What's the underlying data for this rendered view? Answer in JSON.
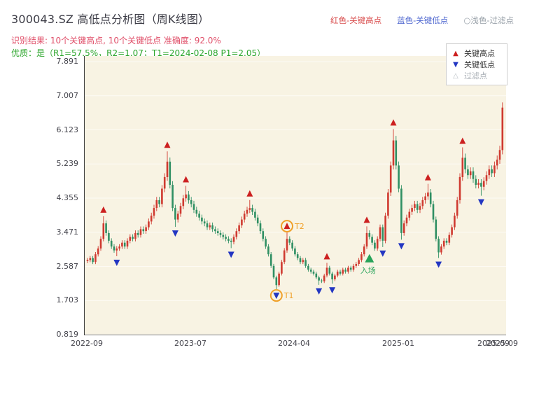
{
  "header": {
    "title": "300043.SZ 高低点分析图（周K线图）",
    "legend_right": [
      {
        "label": "红色-关键高点",
        "color": "#d94f4f"
      },
      {
        "label": "蓝色-关键低点",
        "color": "#5068d0"
      },
      {
        "label": "○浅色-过滤点",
        "color": "#98a0a8"
      }
    ],
    "result_line": "识别结果: 10个关键高点, 10个关键低点  准确度: 92.0%",
    "result_color": "#e0506a",
    "quality_line": "优质：是（R1=57.5%，R2=1.07；T1=2024-02-08 P1=2.05）",
    "quality_color": "#2aa52a"
  },
  "legend_box": {
    "items": [
      {
        "glyph": "▲",
        "label": "关键高点",
        "color": "#cc2020",
        "text_color": "#333333"
      },
      {
        "glyph": "▼",
        "label": "关键低点",
        "color": "#2336c2",
        "text_color": "#333333"
      },
      {
        "glyph": "△",
        "label": "过滤点",
        "color": "#b9bec4",
        "text_color": "#aab0b6"
      }
    ]
  },
  "chart_data": {
    "type": "candlestick",
    "title": "300043.SZ 高低点分析图（周K线图）",
    "x_ticks": [
      "2022-09",
      "2023-07",
      "2024-04",
      "2025-01",
      "2025-09"
    ],
    "x_tick_weeks": [
      0,
      39,
      78,
      117,
      156
    ],
    "x_extra_tick": {
      "label": "2025-09",
      "week": 153
    },
    "y_ticks": [
      7.891,
      7.007,
      6.123,
      5.239,
      4.355,
      3.471,
      2.587,
      1.703,
      0.819
    ],
    "y_tick_labels": [
      "7.891",
      "7.007",
      "6.123",
      "5.239",
      "4.355",
      "3.471",
      "2.587",
      "1.703",
      "0.819"
    ],
    "y_range": [
      0.819,
      7.891
    ],
    "grid": true,
    "closes": [
      2.75,
      2.8,
      2.7,
      2.9,
      3.05,
      3.3,
      3.7,
      3.45,
      3.25,
      3.1,
      3.0,
      3.05,
      3.1,
      3.2,
      3.1,
      3.25,
      3.35,
      3.3,
      3.45,
      3.4,
      3.55,
      3.5,
      3.6,
      3.75,
      3.9,
      4.1,
      4.3,
      4.2,
      4.6,
      4.9,
      5.3,
      4.7,
      4.1,
      3.8,
      3.95,
      4.15,
      4.35,
      4.45,
      4.3,
      4.2,
      4.05,
      3.95,
      3.85,
      3.75,
      3.7,
      3.6,
      3.65,
      3.55,
      3.5,
      3.45,
      3.4,
      3.35,
      3.3,
      3.25,
      3.22,
      3.35,
      3.5,
      3.65,
      3.8,
      3.95,
      4.05,
      4.1,
      4.0,
      3.85,
      3.7,
      3.5,
      3.3,
      3.1,
      2.9,
      2.6,
      2.3,
      2.1,
      2.4,
      2.7,
      3.0,
      3.3,
      3.2,
      3.05,
      2.9,
      2.8,
      2.7,
      2.75,
      2.6,
      2.5,
      2.45,
      2.4,
      2.3,
      2.22,
      2.2,
      2.35,
      2.55,
      2.4,
      2.25,
      2.35,
      2.45,
      2.4,
      2.5,
      2.45,
      2.55,
      2.5,
      2.6,
      2.65,
      2.75,
      2.9,
      3.1,
      3.45,
      3.35,
      3.2,
      3.05,
      3.3,
      3.6,
      3.25,
      3.9,
      4.5,
      5.2,
      5.85,
      5.2,
      4.6,
      3.45,
      3.7,
      3.85,
      4.0,
      4.1,
      4.2,
      4.05,
      4.15,
      4.3,
      4.4,
      4.5,
      4.2,
      3.8,
      3.3,
      2.95,
      3.1,
      3.25,
      3.2,
      3.4,
      3.6,
      3.9,
      4.3,
      4.9,
      5.4,
      5.1,
      4.95,
      5.05,
      4.85,
      4.7,
      4.75,
      4.65,
      4.8,
      4.95,
      5.1,
      5.0,
      5.2,
      5.35,
      5.6,
      6.7
    ],
    "key_high_weeks": [
      6,
      30,
      37,
      61,
      75,
      90,
      105,
      115,
      128,
      141
    ],
    "key_low_weeks": [
      11,
      33,
      54,
      71,
      87,
      92,
      111,
      118,
      132,
      148
    ],
    "t_markers": [
      {
        "label": "T1",
        "week": 71,
        "position": "low"
      },
      {
        "label": "T2",
        "week": 75,
        "position": "high"
      }
    ],
    "entry_marker": {
      "label": "入场",
      "week": 106,
      "price": 2.78
    },
    "colors": {
      "up": "#cf3a30",
      "down": "#2f8f63",
      "key_high": "#cc2020",
      "key_low": "#2336c2",
      "t_ring": "#f0a028",
      "entry": "#27a35a",
      "plot_bg": "#f8f3e3",
      "grid": "#ffffff"
    }
  }
}
